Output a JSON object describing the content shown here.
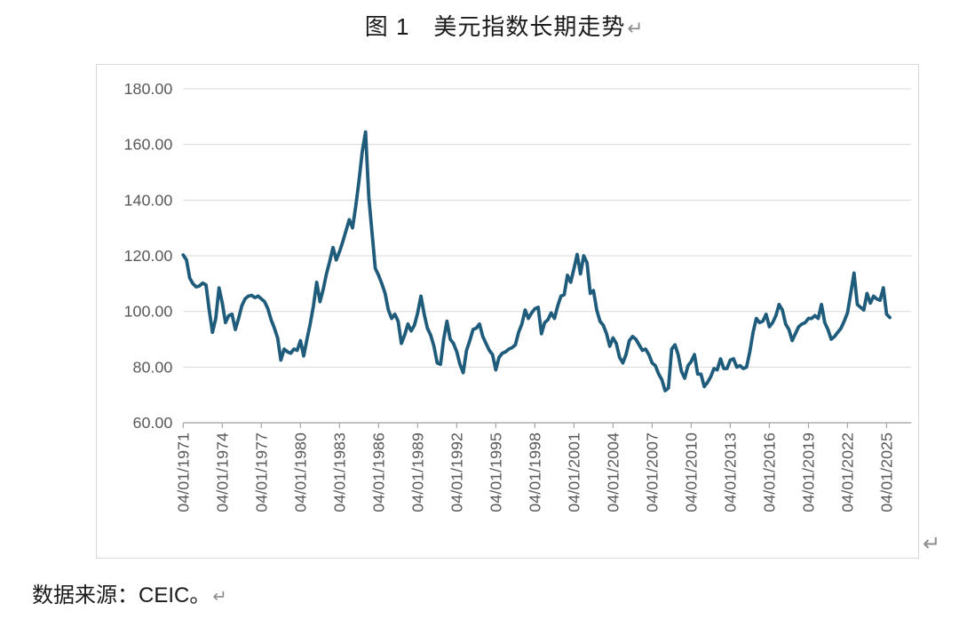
{
  "document": {
    "figure_title": "图 1　美元指数长期走势",
    "source_note": "数据来源：CEIC。",
    "paragraph_mark": "↵"
  },
  "chart_data": {
    "type": "line",
    "title": "图 1　美元指数长期走势",
    "legend": "none",
    "grid": "horizontal",
    "ylim": [
      60,
      185
    ],
    "y_tick_values": [
      180,
      160,
      140,
      120,
      100,
      80,
      60
    ],
    "y_tick_labels": [
      "180.00",
      "160.00",
      "140.00",
      "120.00",
      "100.00",
      "80.00",
      "60.00"
    ],
    "x_tick_labels": [
      "04/01/1971",
      "04/01/1974",
      "04/01/1977",
      "04/01/1980",
      "04/01/1983",
      "04/01/1986",
      "04/01/1989",
      "04/01/1992",
      "04/01/1995",
      "04/01/1998",
      "04/01/2001",
      "04/01/2004",
      "04/01/2007",
      "04/01/2010",
      "04/01/2013",
      "04/01/2016",
      "04/01/2019",
      "04/01/2022",
      "04/01/2025"
    ],
    "series": [
      {
        "name": "美元指数",
        "x_start_year": 1971.25,
        "x_step_years": 0.25,
        "values": [
          120.3,
          118.5,
          112.0,
          110.0,
          108.8,
          109.2,
          110.2,
          109.5,
          100.5,
          92.5,
          97.5,
          108.5,
          103.0,
          96.0,
          98.5,
          99.0,
          93.5,
          97.5,
          102.0,
          104.5,
          105.5,
          105.8,
          105.0,
          105.5,
          104.5,
          103.5,
          101.0,
          97.0,
          94.0,
          90.5,
          82.5,
          86.5,
          85.5,
          85.0,
          86.5,
          86.0,
          89.5,
          84.0,
          90.0,
          95.5,
          102.0,
          110.5,
          103.5,
          108.0,
          113.5,
          118.0,
          123.0,
          118.5,
          121.5,
          125.0,
          129.0,
          133.0,
          130.0,
          138.0,
          147.0,
          157.5,
          164.5,
          141.0,
          128.0,
          115.5,
          113.0,
          110.0,
          106.5,
          100.5,
          97.5,
          99.0,
          96.5,
          88.5,
          91.5,
          95.5,
          93.0,
          95.0,
          99.5,
          105.5,
          99.0,
          94.0,
          91.5,
          87.5,
          81.5,
          81.0,
          90.0,
          96.5,
          90.0,
          88.5,
          85.5,
          81.0,
          78.0,
          86.0,
          89.5,
          93.5,
          94.0,
          95.5,
          91.0,
          88.5,
          86.0,
          84.5,
          79.0,
          83.5,
          85.0,
          85.5,
          86.5,
          87.0,
          88.0,
          92.5,
          95.5,
          100.5,
          97.5,
          99.5,
          101.0,
          101.5,
          92.0,
          96.0,
          97.0,
          99.5,
          97.5,
          102.0,
          105.5,
          106.0,
          113.0,
          110.5,
          115.5,
          120.5,
          113.5,
          120.0,
          117.5,
          106.5,
          107.5,
          100.5,
          96.5,
          95.0,
          92.0,
          87.5,
          90.5,
          88.5,
          83.5,
          81.5,
          84.5,
          89.5,
          91.0,
          90.0,
          88.0,
          86.0,
          86.5,
          84.5,
          81.5,
          80.5,
          77.5,
          75.5,
          71.5,
          72.5,
          86.5,
          88.0,
          84.5,
          78.5,
          76.0,
          80.5,
          82.0,
          84.5,
          77.5,
          77.5,
          73.0,
          74.5,
          76.5,
          79.5,
          79.0,
          83.0,
          79.5,
          79.5,
          82.5,
          83.0,
          80.0,
          80.5,
          79.5,
          80.0,
          85.5,
          92.5,
          97.5,
          96.0,
          96.5,
          99.0,
          94.5,
          96.0,
          98.5,
          102.5,
          100.5,
          95.5,
          93.5,
          89.5,
          92.0,
          94.5,
          95.5,
          96.0,
          97.5,
          97.5,
          98.5,
          97.5,
          102.5,
          96.0,
          93.5,
          90.0,
          91.0,
          92.5,
          94.0,
          96.5,
          99.5,
          106.5,
          113.8,
          102.5,
          101.5,
          100.5,
          106.5,
          103.0,
          105.5,
          104.5,
          104.0,
          108.5,
          99.0,
          97.8
        ]
      }
    ],
    "colors": {
      "line": "#1F5C7B",
      "grid": "#D9D9D9",
      "axis": "#A6A6A6",
      "tick_label": "#595959",
      "border": "#D9D9D9",
      "text": "#1A1A1A",
      "paragraph_mark": "#8C8C8C"
    }
  }
}
